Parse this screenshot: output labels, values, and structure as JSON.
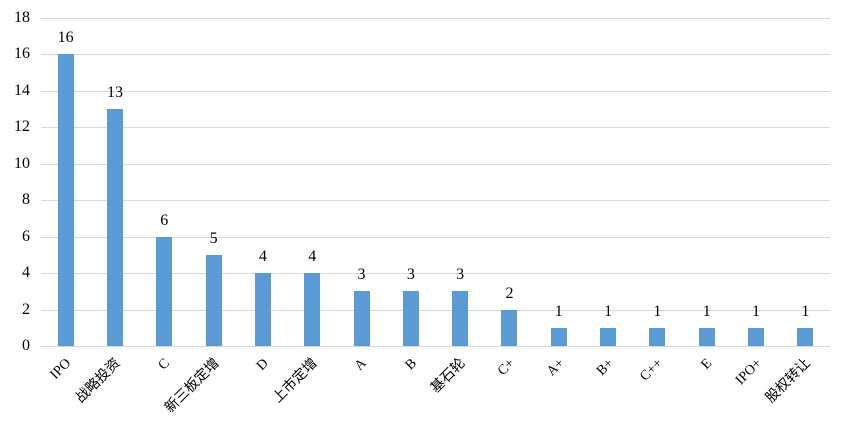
{
  "chart_data": {
    "type": "bar",
    "title": "",
    "xlabel": "",
    "ylabel": "",
    "categories": [
      "IPO",
      "战略投资",
      "C",
      "新三板定增",
      "D",
      "上市定增",
      "A",
      "B",
      "基石轮",
      "C+",
      "A+",
      "B+",
      "C++",
      "E",
      "IPO+",
      "股权转让"
    ],
    "values": [
      16,
      13,
      6,
      5,
      4,
      4,
      3,
      3,
      3,
      2,
      1,
      1,
      1,
      1,
      1,
      1
    ],
    "ylim": [
      0,
      18
    ],
    "ytick_step": 2,
    "yticks": [
      0,
      2,
      4,
      6,
      8,
      10,
      12,
      14,
      16,
      18
    ],
    "grid": true,
    "legend": false,
    "data_labels": true,
    "x_label_rotation_deg": -45,
    "colors": {
      "bar": "#5b9bd5",
      "gridline": "#d9d9d9",
      "axis_line": "#d9d9d9",
      "text": "#000000",
      "background": "#ffffff"
    }
  }
}
